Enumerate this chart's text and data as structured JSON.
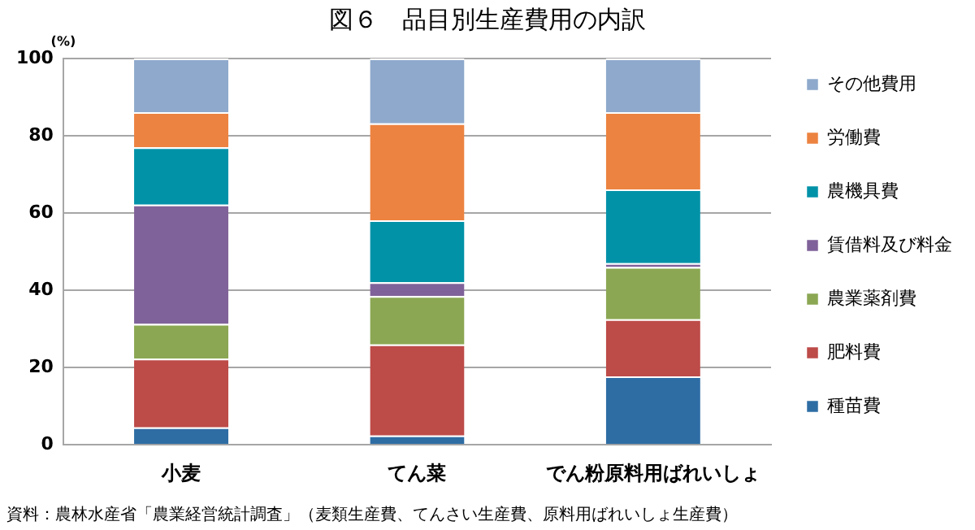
{
  "chart_data": {
    "type": "bar",
    "title": "図６　品目別生産費用の内訳",
    "ylabel": "(%)",
    "stacked": true,
    "categories": [
      "小麦",
      "てん菜",
      "でん粉原料用ばれいしょ"
    ],
    "series": [
      {
        "name": "種苗費",
        "color": "#2e6da4",
        "values": [
          4.5,
          2.4,
          17.7
        ]
      },
      {
        "name": "肥料費",
        "color": "#bd4b48",
        "values": [
          17.8,
          23.6,
          14.8
        ]
      },
      {
        "name": "農業薬剤費",
        "color": "#8ba753",
        "values": [
          9.0,
          12.5,
          13.5
        ]
      },
      {
        "name": "賃借料及び料金",
        "color": "#80629a",
        "values": [
          30.9,
          3.6,
          1.0
        ]
      },
      {
        "name": "農機具費",
        "color": "#0292a8",
        "values": [
          14.8,
          16.0,
          19.1
        ]
      },
      {
        "name": "労働費",
        "color": "#ec8340",
        "values": [
          9.1,
          25.1,
          20.0
        ]
      },
      {
        "name": "その他費用",
        "color": "#8ea9cc",
        "values": [
          13.9,
          16.8,
          13.9
        ]
      }
    ],
    "ylim": [
      0,
      100
    ],
    "yticks": [
      0,
      20,
      40,
      60,
      80,
      100
    ],
    "grid": "y",
    "legend": "right",
    "annotations": [
      "資料：農林水産省「農業経営統計調査」（麦類生産費、てんさい生産費、原料用ばれいしょ生産費）"
    ]
  }
}
